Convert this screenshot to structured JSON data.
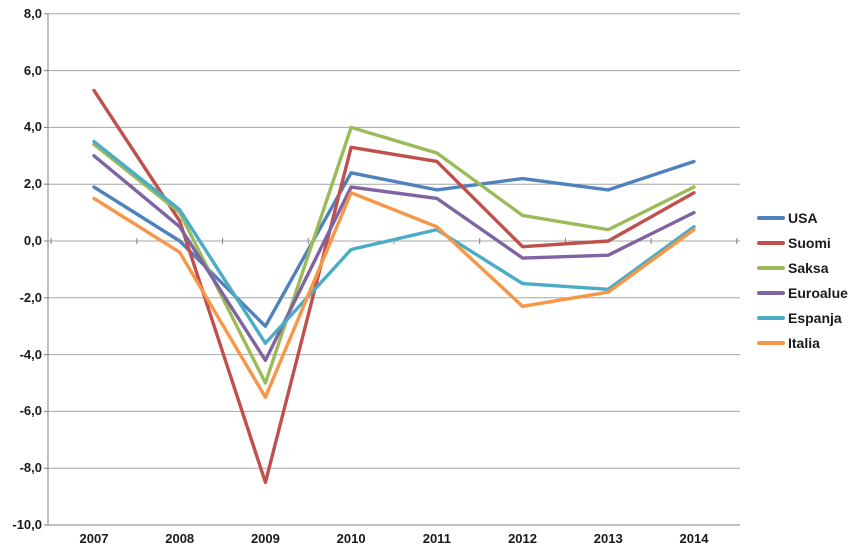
{
  "chart_data": {
    "type": "line",
    "title": "",
    "xlabel": "",
    "ylabel": "",
    "categories": [
      "2007",
      "2008",
      "2009",
      "2010",
      "2011",
      "2012",
      "2013",
      "2014"
    ],
    "series": [
      {
        "name": "USA",
        "color": "#4F81BD",
        "values": [
          1.9,
          0.0,
          -3.0,
          2.4,
          1.8,
          2.2,
          1.8,
          2.8
        ]
      },
      {
        "name": "Suomi",
        "color": "#C0504D",
        "values": [
          5.3,
          0.7,
          -8.5,
          3.3,
          2.8,
          -0.2,
          0.0,
          1.7
        ]
      },
      {
        "name": "Saksa",
        "color": "#9BBB59",
        "values": [
          3.4,
          1.0,
          -5.0,
          4.0,
          3.1,
          0.9,
          0.4,
          1.9
        ]
      },
      {
        "name": "Euroalue",
        "color": "#8064A2",
        "values": [
          3.0,
          0.5,
          -4.2,
          1.9,
          1.5,
          -0.6,
          -0.5,
          1.0
        ]
      },
      {
        "name": "Espanja",
        "color": "#4BACC6",
        "values": [
          3.5,
          1.1,
          -3.6,
          -0.3,
          0.4,
          -1.5,
          -1.7,
          0.5
        ]
      },
      {
        "name": "Italia",
        "color": "#F79646",
        "values": [
          1.5,
          -0.4,
          -5.5,
          1.7,
          0.5,
          -2.3,
          -1.8,
          0.4
        ]
      }
    ],
    "ylim": [
      -10,
      8
    ],
    "ytick_step": 2,
    "ytick_labels": [
      "8,0",
      "6,0",
      "4,0",
      "2,0",
      "0,0",
      "-2,0",
      "-4,0",
      "-6,0",
      "-8,0",
      "-10,0"
    ],
    "decimal_separator": ",",
    "grid": true,
    "legend_position": "right",
    "colors": {
      "gridline": "#A6A6A6",
      "axis": "#808080",
      "text": "#1a1a1a",
      "background": "#FFFFFF"
    }
  }
}
